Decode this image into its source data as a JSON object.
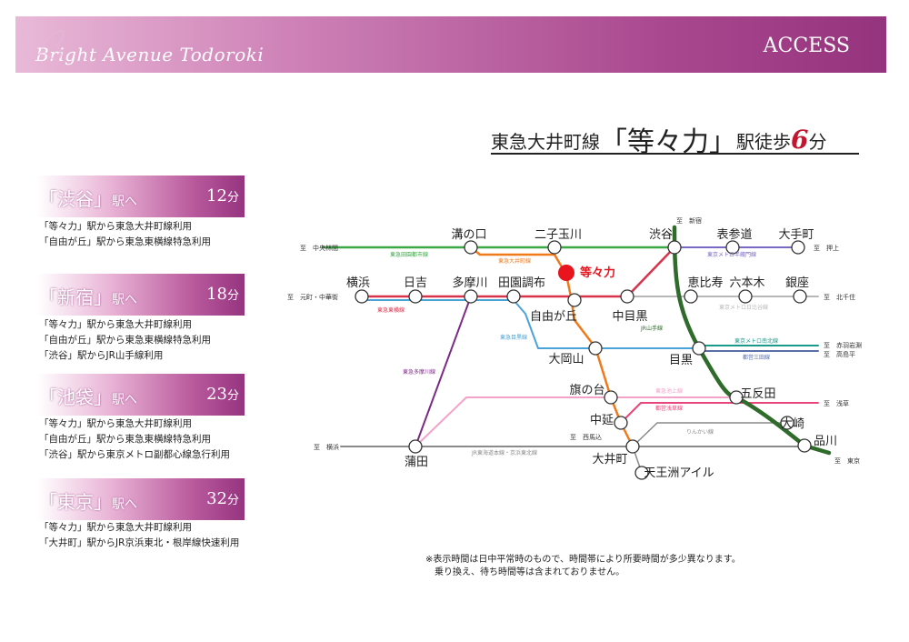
{
  "header": {
    "brand": "Bright Avenue Todoroki",
    "access": "ACCESS"
  },
  "headline": {
    "prefix": "東急大井町線",
    "station": "「等々力」",
    "suffix1": "駅徒歩",
    "minutes": "6",
    "unit": "分"
  },
  "destinations": [
    {
      "name": "「渋谷」",
      "he": "駅へ",
      "time": "12",
      "unit": "分",
      "notes": [
        "「等々力」駅から東急大井町線利用",
        "「自由が丘」駅から東急東横線特急利用"
      ]
    },
    {
      "name": "「新宿」",
      "he": "駅へ",
      "time": "18",
      "unit": "分",
      "notes": [
        "「等々力」駅から東急大井町線利用",
        "「自由が丘」駅から東急東横線特急利用",
        "「渋谷」駅からJR山手線利用"
      ]
    },
    {
      "name": "「池袋」",
      "he": "駅へ",
      "time": "23",
      "unit": "分",
      "notes": [
        "「等々力」駅から東急大井町線利用",
        "「自由が丘」駅から東急東横線特急利用",
        "「渋谷」駅から東京メトロ副都心線急行利用"
      ]
    },
    {
      "name": "「東京」",
      "he": "駅へ",
      "time": "32",
      "unit": "分",
      "notes": [
        "「等々力」駅から東急大井町線利用",
        "「大井町」駅からJR京浜東北・根岸線快速利用"
      ]
    }
  ],
  "footnote": "※表示時間は日中平常時のもので、時間帯により所要時間が多少異なります。\n　乗り換え、待ち時間等は含まれておりません。",
  "map": {
    "stations": {
      "mizonokuchi": "溝の口",
      "futako": "二子玉川",
      "shibuya": "渋谷",
      "omotesando": "表参道",
      "otemachi": "大手町",
      "todoroki": "等々力",
      "yokohama": "横浜",
      "hiyoshi": "日吉",
      "tamagawa": "多摩川",
      "denen": "田園調布",
      "jiyugaoka": "自由が丘",
      "nakameguro": "中目黒",
      "ebisu": "恵比寿",
      "roppongi": "六本木",
      "ginza": "銀座",
      "ookayama": "大岡山",
      "meguro": "目黒",
      "hatanodai": "旗の台",
      "gotanda": "五反田",
      "nakanobu": "中延",
      "osaki": "大崎",
      "kamata": "蒲田",
      "oimachi": "大井町",
      "shinagawa": "品川",
      "tennozu": "天王洲アイル"
    },
    "lines": {
      "denentoshi": "東急田園都市線",
      "oimachi_line": "東急大井町線",
      "toyoko": "東急東横線",
      "meguro_line": "東急目黒線",
      "tamagawa_line": "東急多摩川線",
      "yamanote": "JR山手線",
      "hanzomon": "東京メトロ半蔵門線",
      "hibiya": "東京メトロ日比谷線",
      "namboku": "東京メトロ南北線",
      "mita": "都営三田線",
      "ikegami": "東急池上線",
      "asakusa": "都営浅草線",
      "rinkai": "りんかい線",
      "keihin": "JR東海道本線・京浜東北線"
    },
    "directions": {
      "chuorinkan": "至　中央林間",
      "motomachi": "至　元町・中華街",
      "shinjuku": "至　新宿",
      "oshiage": "至　押上",
      "kitasenju": "至　北千住",
      "akabane": "至　赤羽岩淵",
      "takashimadaira": "至　高島平",
      "asakusa": "至　浅草",
      "yokohama": "至　横浜",
      "tokyo": "至　東京",
      "nishimagome": "至　西馬込"
    },
    "colors": {
      "denentoshi": "#3aa845",
      "oimachi_line": "#f07a1a",
      "toyoko": "#d8334a",
      "meguro_line": "#4aa3d8",
      "tamagawa_line": "#7b2a86",
      "yamanote": "#2f6b2a",
      "hanzomon": "#7b68c4",
      "hibiya": "#b8b8b8",
      "namboku": "#1a9a8a",
      "mita": "#5a6ea8",
      "ikegami": "#f3a2c8",
      "asakusa": "#e8457a",
      "rinkai": "#888888",
      "keihin": "#8a8a8a",
      "accent": "#e8141e"
    }
  }
}
